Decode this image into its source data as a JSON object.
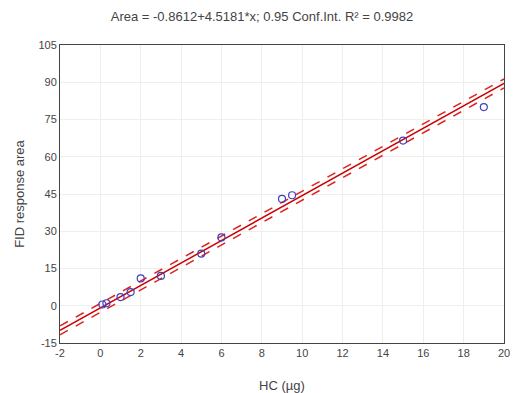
{
  "chart_data": {
    "type": "scatter",
    "title": "Area = -0.8612+4.5181*x; 0.95 Conf.Int. R² = 0.9982",
    "x_label": "HC (µg)",
    "y_label": "FID response area",
    "xlim": [
      -2,
      20
    ],
    "ylim": [
      -15,
      105
    ],
    "xticks": [
      -2,
      0,
      2,
      4,
      6,
      8,
      10,
      12,
      14,
      16,
      18,
      20
    ],
    "yticks": [
      -15,
      0,
      15,
      30,
      45,
      60,
      75,
      90,
      105
    ],
    "grid": true,
    "series": [
      {
        "type": "line",
        "line_style": "solid",
        "color": "#cc0000",
        "x": [
          -2,
          20
        ],
        "values": [
          -9.8974,
          89.5008
        ]
      },
      {
        "type": "line",
        "line_style": "dashed",
        "color": "#dd2222",
        "x": [
          -2,
          20
        ],
        "values": [
          -8.0974,
          91.3008
        ]
      },
      {
        "type": "line",
        "line_style": "dashed",
        "color": "#dd2222",
        "x": [
          -2,
          20
        ],
        "values": [
          -11.6974,
          87.7008
        ]
      },
      {
        "type": "scatter",
        "marker": "open circle",
        "color": "#4040bb",
        "x": [
          0.1,
          0.3,
          1.0,
          1.5,
          2.0,
          3.0,
          5.0,
          6.0,
          9.0,
          9.5,
          15.0,
          19.0
        ],
        "values": [
          0.5,
          1.0,
          3.5,
          5.5,
          11.0,
          12.0,
          21.0,
          27.5,
          43.0,
          44.5,
          66.5,
          80.0
        ]
      }
    ]
  }
}
